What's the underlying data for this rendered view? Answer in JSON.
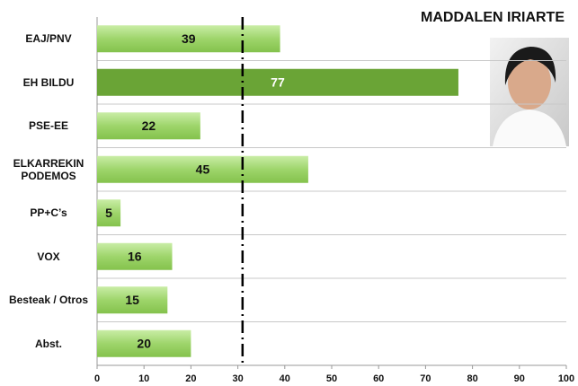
{
  "chart_data": {
    "type": "bar",
    "orientation": "horizontal",
    "title": "MADDALEN IRIARTE",
    "categories": [
      "EAJ/PNV",
      "EH BILDU",
      "PSE-EE",
      "ELKARREKIN PODEMOS",
      "PP+C’s",
      "VOX",
      "Besteak / Otros",
      "Abst."
    ],
    "values": [
      39,
      77,
      22,
      45,
      5,
      16,
      15,
      20
    ],
    "colors": [
      "#9ed56b",
      "#6aa436",
      "#9ed56b",
      "#9ed56b",
      "#9ed56b",
      "#9ed56b",
      "#9ed56b",
      "#9ed56b"
    ],
    "label_colors": [
      "#111111",
      "#ffffff",
      "#111111",
      "#111111",
      "#111111",
      "#111111",
      "#111111",
      "#111111"
    ],
    "xlim": [
      0,
      100
    ],
    "xticks": [
      0,
      10,
      20,
      30,
      40,
      50,
      60,
      70,
      80,
      90,
      100
    ],
    "reference_line": 31
  }
}
